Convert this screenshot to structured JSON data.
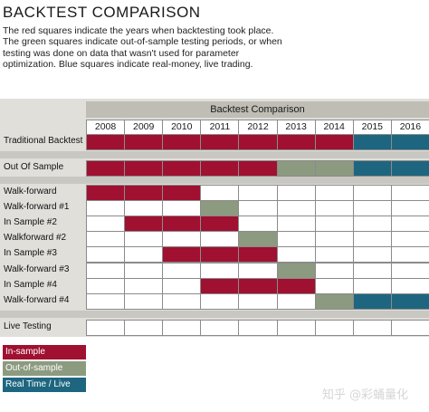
{
  "title": "BACKTEST COMPARISON",
  "description": "The red squares indicate the years when backtesting took place. The green squares indicate out-of-sample testing periods, or when testing was done on data that wasn't used for parameter optimization. Blue squares indicate real-money, live trading.",
  "colors": {
    "in_sample": "#a01030",
    "out_of_sample": "#8c9a80",
    "live": "#1e6680",
    "empty": "#ffffff",
    "grid": "#8b8b8b",
    "band": "#e0dfda"
  },
  "chart_data": {
    "type": "table",
    "title": "Backtest Comparison",
    "years": [
      "2008",
      "2009",
      "2010",
      "2011",
      "2012",
      "2013",
      "2014",
      "2015",
      "2016"
    ],
    "rows": [
      {
        "label": "Traditional Backtest",
        "cells": [
          "in",
          "in",
          "in",
          "in",
          "in",
          "in",
          "in",
          "live",
          "live"
        ]
      },
      {
        "label": "Out Of Sample",
        "cells": [
          "in",
          "in",
          "in",
          "in",
          "in",
          "out",
          "out",
          "live",
          "live"
        ]
      },
      {
        "label": "Walk-forward",
        "cells": [
          "in",
          "in",
          "in",
          "",
          "",
          "",
          "",
          "",
          ""
        ]
      },
      {
        "label": "Walk-forward #1",
        "cells": [
          "",
          "",
          "",
          "out",
          "",
          "",
          "",
          "",
          ""
        ]
      },
      {
        "label": "In Sample #2",
        "cells": [
          "",
          "in",
          "in",
          "in",
          "",
          "",
          "",
          "",
          ""
        ]
      },
      {
        "label": "Walkforward #2",
        "cells": [
          "",
          "",
          "",
          "",
          "out",
          "",
          "",
          "",
          ""
        ]
      },
      {
        "label": "In Sample #3",
        "cells": [
          "",
          "",
          "in",
          "in",
          "in",
          "",
          "",
          "",
          ""
        ]
      },
      {
        "label": "Walk-forward #3",
        "cells": [
          "",
          "",
          "",
          "",
          "",
          "out",
          "",
          "",
          ""
        ]
      },
      {
        "label": "In Sample #4",
        "cells": [
          "",
          "",
          "",
          "in",
          "in",
          "in",
          "",
          "",
          ""
        ]
      },
      {
        "label": "Walk-forward #4",
        "cells": [
          "",
          "",
          "",
          "",
          "",
          "",
          "out",
          "live",
          "live"
        ]
      },
      {
        "label": "Live Testing",
        "cells": [
          "",
          "",
          "",
          "",
          "",
          "",
          "",
          "",
          ""
        ]
      }
    ],
    "legend": [
      {
        "key": "in",
        "label": "In-sample"
      },
      {
        "key": "out",
        "label": "Out-of-sample"
      },
      {
        "key": "live",
        "label": "Real Time / Live Test"
      }
    ]
  },
  "watermark": "知乎 @彩蛹量化"
}
